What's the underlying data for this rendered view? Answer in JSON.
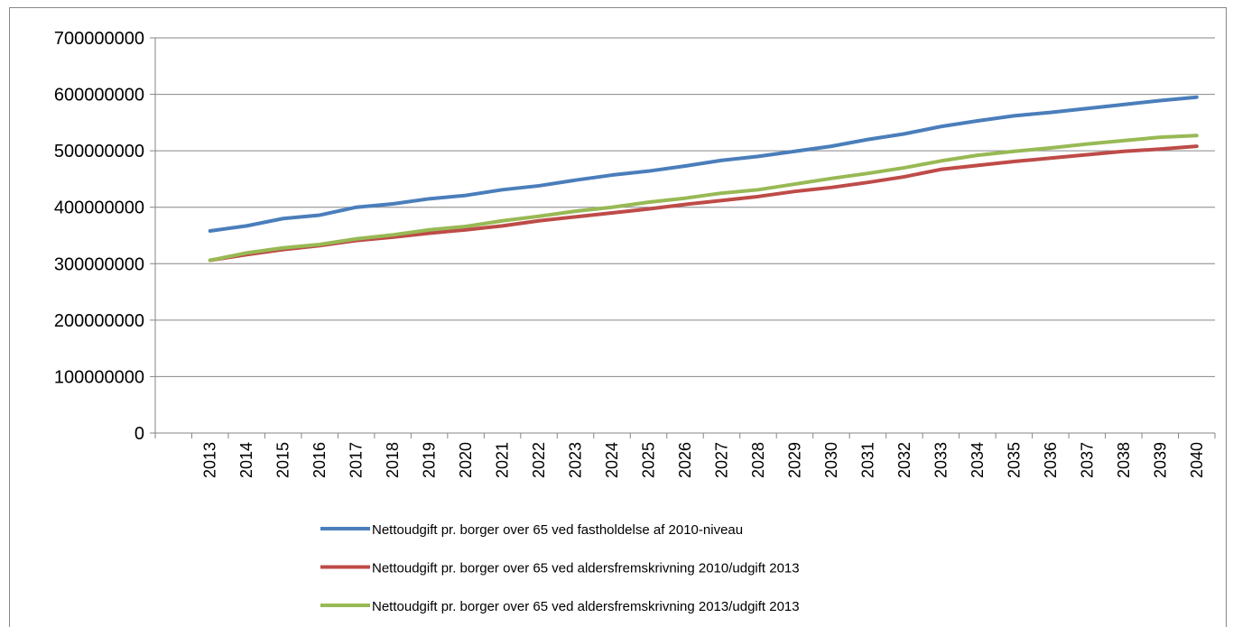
{
  "chart_data": {
    "type": "line",
    "categories": [
      null,
      "2013",
      "2014",
      "2015",
      "2016",
      "2017",
      "2018",
      "2019",
      "2020",
      "2021",
      "2022",
      "2023",
      "2024",
      "2025",
      "2026",
      "2027",
      "2028",
      "2029",
      "2030",
      "2031",
      "2032",
      "2033",
      "2034",
      "2035",
      "2036",
      "2037",
      "2038",
      "2039",
      "2040"
    ],
    "series": [
      {
        "name": "Nettoudgift pr. borger over 65 ved fastholdelse af 2010-niveau",
        "color": "#4a7ebb",
        "values": [
          null,
          358000000,
          367000000,
          380000000,
          386000000,
          400000000,
          406000000,
          415000000,
          421000000,
          431000000,
          438000000,
          448000000,
          457000000,
          464000000,
          473000000,
          483000000,
          490000000,
          499000000,
          508000000,
          520000000,
          530000000,
          543000000,
          553000000,
          562000000,
          568000000,
          575000000,
          582000000,
          589000000,
          595000000
        ]
      },
      {
        "name": "Nettoudgift pr. borger over 65 ved aldersfremskrivning 2010/udgift 2013",
        "color": "#be4b48",
        "values": [
          null,
          306000000,
          316000000,
          325000000,
          332000000,
          341000000,
          347000000,
          354000000,
          360000000,
          367000000,
          376000000,
          383000000,
          390000000,
          397000000,
          405000000,
          412000000,
          419000000,
          428000000,
          435000000,
          444000000,
          454000000,
          467000000,
          474000000,
          481000000,
          487000000,
          493000000,
          499000000,
          503000000,
          508000000
        ]
      },
      {
        "name": "Nettoudgift pr. borger over 65 ved aldersfremskrivning 2013/udgift 2013",
        "color": "#98b954",
        "values": [
          null,
          306000000,
          319000000,
          328000000,
          334000000,
          344000000,
          351000000,
          360000000,
          366000000,
          376000000,
          384000000,
          393000000,
          400000000,
          409000000,
          416000000,
          425000000,
          431000000,
          441000000,
          451000000,
          460000000,
          470000000,
          482000000,
          492000000,
          499000000,
          505000000,
          512000000,
          518000000,
          524000000,
          527000000
        ]
      }
    ],
    "ylim": [
      0,
      700000000
    ],
    "yticks": [
      0,
      100000000,
      200000000,
      300000000,
      400000000,
      500000000,
      600000000,
      700000000
    ],
    "grid": true,
    "legend": "bottom"
  }
}
